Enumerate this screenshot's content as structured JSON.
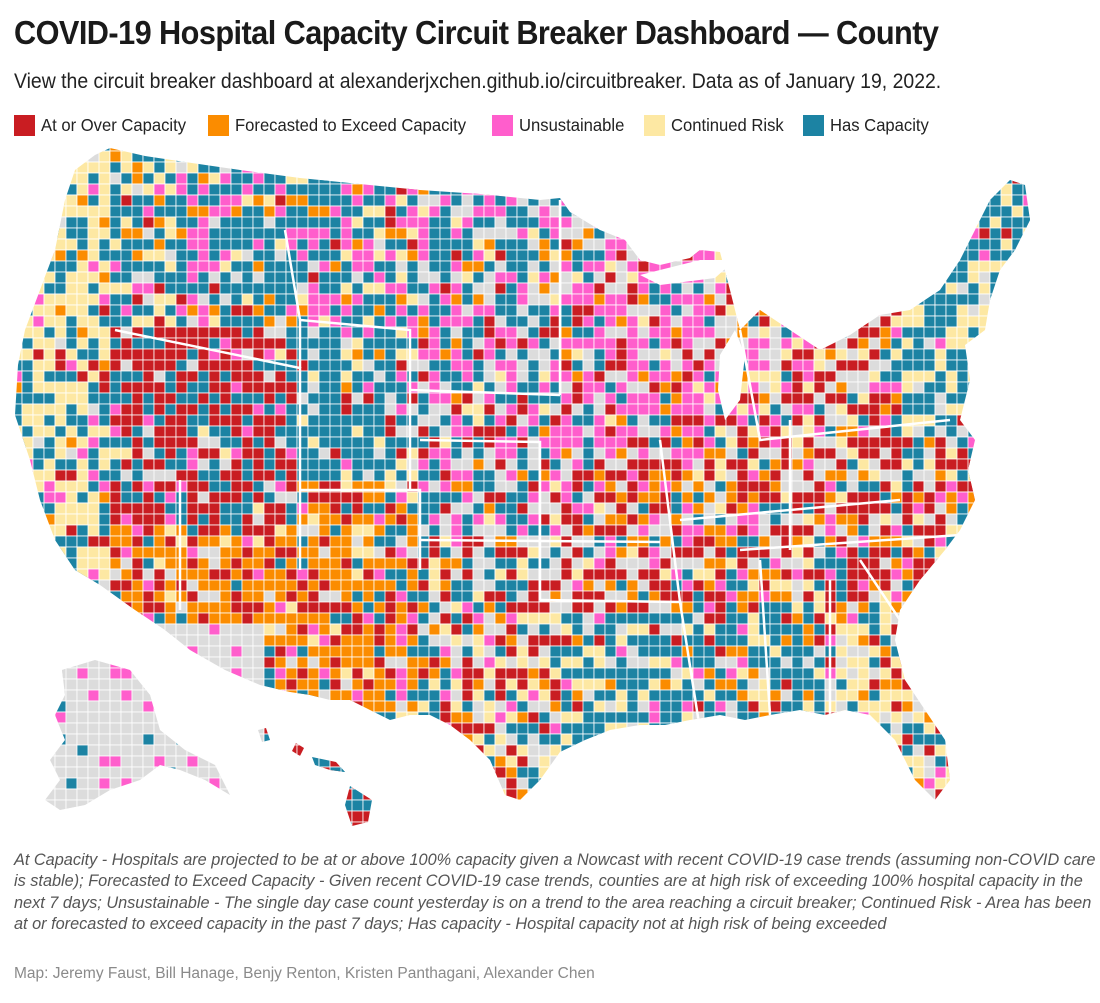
{
  "header": {
    "title": "COVID-19 Hospital Capacity Circuit Breaker Dashboard — County",
    "subtitle": "View the circuit breaker dashboard at alexanderjxchen.github.io/circuitbreaker. Data as of January 19, 2022."
  },
  "legend": [
    {
      "label": "At or Over Capacity",
      "color": "#c91d22"
    },
    {
      "label": "Forecasted to Exceed Capacity",
      "color": "#fb8c00"
    },
    {
      "label": "Unsustainable",
      "color": "#ff5ecc"
    },
    {
      "label": "Continued Risk",
      "color": "#fde8a3"
    },
    {
      "label": "Has Capacity",
      "color": "#1c83a3"
    }
  ],
  "no_data_color": "#dcdcdc",
  "footer": {
    "note": "At Capacity - Hospitals are projected to be at or above 100% capacity given a Nowcast with recent COVID-19 case trends (assuming non-COVID care is stable); Forecasted to Exceed Capacity - Given recent COVID-19 case trends, counties are at high risk of exceeding 100% hospital capacity in the next 7 days; Unsustainable - The single day case count yesterday is on a trend to the area reaching a circuit breaker; Continued Risk - Area has been at or forecasted to exceed capacity in the past 7 days; Has capacity - Hospital capacity not at high risk of being exceeded",
    "credit": "Map: Jeremy Faust, Bill Hanage, Benjy Renton, Kristen Panthagani, Alexander Chen"
  },
  "chart_data": {
    "type": "choropleth",
    "title": "COVID-19 Hospital Capacity Circuit Breaker Dashboard — County",
    "geography": "US counties",
    "date": "January 19, 2022",
    "categories": [
      "At or Over Capacity",
      "Forecasted to Exceed Capacity",
      "Unsustainable",
      "Continued Risk",
      "Has Capacity"
    ],
    "legend_position": "top-left"
  }
}
